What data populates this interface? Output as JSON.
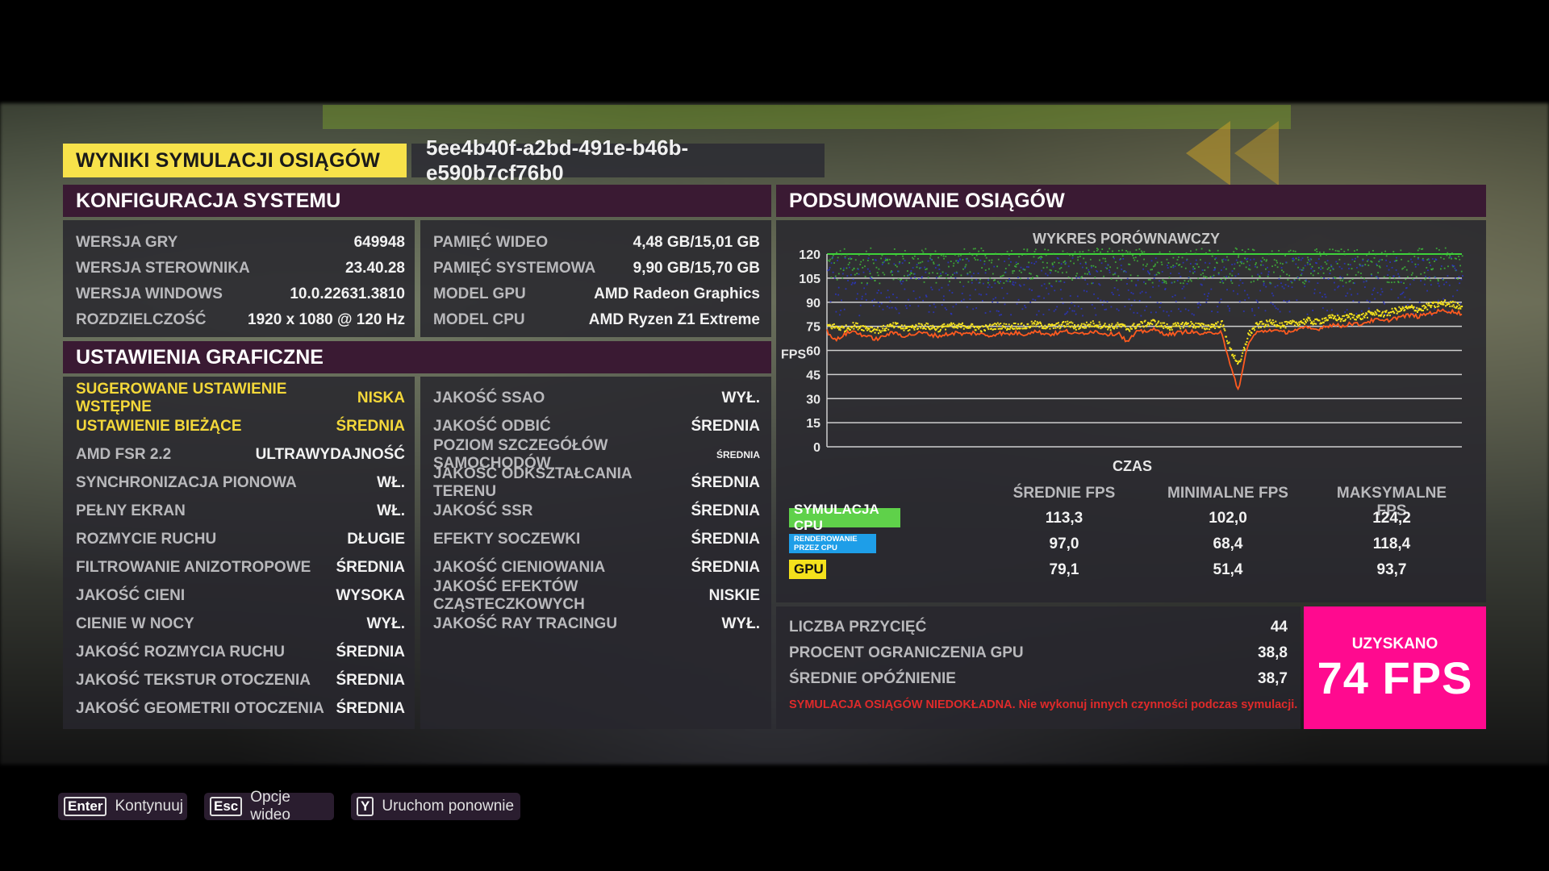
{
  "header": {
    "title": "WYNIKI SYMULACJI OSIĄGÓW",
    "run_id": "5ee4b40f-a2bd-491e-b46b-e590b7cf76b0"
  },
  "system_config": {
    "title": "KONFIGURACJA SYSTEMU",
    "left": [
      {
        "label": "WERSJA GRY",
        "value": "649948"
      },
      {
        "label": "WERSJA STEROWNIKA",
        "value": "23.40.28"
      },
      {
        "label": "WERSJA WINDOWS",
        "value": "10.0.22631.3810"
      },
      {
        "label": "ROZDZIELCZOŚĆ",
        "value": "1920 x 1080 @ 120 Hz"
      }
    ],
    "right": [
      {
        "label": "PAMIĘĆ WIDEO",
        "value": "4,48 GB/15,01 GB"
      },
      {
        "label": "PAMIĘĆ SYSTEMOWA",
        "value": "9,90 GB/15,70 GB"
      },
      {
        "label": "MODEL GPU",
        "value": "AMD Radeon Graphics"
      },
      {
        "label": "MODEL CPU",
        "value": "AMD Ryzen Z1 Extreme"
      }
    ]
  },
  "graphics_settings": {
    "title": "USTAWIENIA GRAFICZNE",
    "highlight_color": "#f4d83a",
    "left": [
      {
        "label": "SUGEROWANE USTAWIENIE WSTĘPNE",
        "value": "NISKA"
      },
      {
        "label": "USTAWIENIE BIEŻĄCE",
        "value": "ŚREDNIA"
      },
      {
        "label": "AMD FSR 2.2",
        "value": "ULTRAWYDAJNOŚĆ"
      },
      {
        "label": "SYNCHRONIZACJA PIONOWA",
        "value": "WŁ."
      },
      {
        "label": "PEŁNY EKRAN",
        "value": "WŁ."
      },
      {
        "label": "ROZMYCIE RUCHU",
        "value": "DŁUGIE"
      },
      {
        "label": "FILTROWANIE ANIZOTROPOWE",
        "value": "ŚREDNIA"
      },
      {
        "label": "JAKOŚĆ CIENI",
        "value": "WYSOKA"
      },
      {
        "label": "CIENIE W NOCY",
        "value": "WYŁ."
      },
      {
        "label": "JAKOŚĆ ROZMYCIA RUCHU",
        "value": "ŚREDNIA"
      },
      {
        "label": "JAKOŚĆ TEKSTUR OTOCZENIA",
        "value": "ŚREDNIA"
      },
      {
        "label": "JAKOŚĆ GEOMETRII OTOCZENIA",
        "value": "ŚREDNIA"
      }
    ],
    "right": [
      {
        "label": "JAKOŚĆ SSAO",
        "value": "WYŁ."
      },
      {
        "label": "JAKOŚĆ ODBIĆ",
        "value": "ŚREDNIA"
      },
      {
        "label": "POZIOM SZCZEGÓŁÓW SAMOCHODÓW",
        "value": "ŚREDNIA"
      },
      {
        "label": "JAKOŚĆ ODKSZTAŁCANIA TERENU",
        "value": "ŚREDNIA"
      },
      {
        "label": "JAKOŚĆ SSR",
        "value": "ŚREDNIA"
      },
      {
        "label": "EFEKTY SOCZEWKI",
        "value": "ŚREDNIA"
      },
      {
        "label": "JAKOŚĆ CIENIOWANIA",
        "value": "ŚREDNIA"
      },
      {
        "label": "JAKOŚĆ EFEKTÓW CZĄSTECZKOWYCH",
        "value": "NISKIE"
      },
      {
        "label": "JAKOŚĆ RAY TRACINGU",
        "value": "WYŁ."
      }
    ]
  },
  "performance_summary": {
    "title": "PODSUMOWANIE OSIĄGÓW",
    "chart_title": "WYKRES PORÓWNAWCZY",
    "stats_headers": [
      "ŚREDNIE FPS",
      "MINIMALNE FPS",
      "MAKSYMALNE FPS"
    ],
    "rows": [
      {
        "label": "SYMULACJA CPU",
        "color": "#5fd14a",
        "avg": "113,3",
        "min": "102,0",
        "max": "124,2"
      },
      {
        "label": "RENDEROWANIE PRZEZ CPU",
        "color": "#1e9ee8",
        "avg": "97,0",
        "min": "68,4",
        "max": "118,4"
      },
      {
        "label": "GPU",
        "color": "#f4e11c",
        "avg": "79,1",
        "min": "51,4",
        "max": "93,7"
      }
    ],
    "extra": [
      {
        "label": "LICZBA PRZYCIĘĆ",
        "value": "44"
      },
      {
        "label": "PROCENT OGRANICZENIA GPU",
        "value": "38,8"
      },
      {
        "label": "ŚREDNIE OPÓŹNIENIE",
        "value": "38,7"
      }
    ],
    "warning": "SYMULACJA OSIĄGÓW NIEDOKŁADNA. Nie wykonuj innych czynności podczas symulacji.",
    "result_label": "UZYSKANO",
    "result_value": "74 FPS",
    "result_color": "#ff0a8f"
  },
  "chart_data": {
    "type": "scatter",
    "title": "WYKRES PORÓWNAWCZY",
    "xlabel": "CZAS",
    "ylabel": "FPS",
    "ylim": [
      0,
      120
    ],
    "yticks": [
      0,
      15,
      30,
      45,
      60,
      75,
      90,
      105,
      120
    ],
    "grid": true,
    "series": [
      {
        "name": "SYMULACJA CPU",
        "color": "#3fb83a",
        "kind": "scatter",
        "range": [
          102.0,
          124.2
        ],
        "mean": 113.3
      },
      {
        "name": "RENDEROWANIE PRZEZ CPU",
        "color": "#2a35c8",
        "kind": "scatter",
        "range": [
          68.4,
          118.4
        ],
        "mean": 97.0
      },
      {
        "name": "GPU",
        "color": "#f4e11c",
        "kind": "scatter",
        "range": [
          51.4,
          93.7
        ],
        "mean": 79.1,
        "profile": [
          76,
          75,
          74,
          76,
          75,
          74,
          73,
          75,
          76,
          74,
          75,
          76,
          75,
          74,
          76,
          75,
          76,
          75,
          74,
          75,
          76,
          75,
          76,
          75,
          77,
          76,
          75,
          76,
          77,
          75,
          76,
          77,
          76,
          75,
          76,
          74,
          76,
          77,
          78,
          76,
          75,
          76,
          77,
          76,
          75,
          76,
          77,
          60,
          51.4,
          70,
          76,
          77,
          78,
          76,
          77,
          78,
          79,
          78,
          80,
          81,
          80,
          82,
          81,
          83,
          84,
          83,
          85,
          86,
          87,
          86,
          88,
          89,
          90,
          89,
          88
        ]
      },
      {
        "name": "",
        "color": "#ff5a1f",
        "kind": "line",
        "note": "unlabeled orange line",
        "profile": [
          72,
          66,
          70,
          72,
          70,
          68,
          67,
          70,
          71,
          69,
          70,
          71,
          70,
          69,
          70,
          71,
          70,
          71,
          70,
          69,
          71,
          70,
          71,
          70,
          72,
          71,
          70,
          71,
          72,
          70,
          71,
          72,
          71,
          70,
          71,
          65,
          71,
          72,
          73,
          71,
          70,
          71,
          72,
          71,
          70,
          71,
          72,
          50,
          35,
          63,
          71,
          72,
          73,
          71,
          72,
          73,
          74,
          73,
          75,
          76,
          75,
          77,
          76,
          78,
          79,
          78,
          80,
          81,
          82,
          81,
          83,
          84,
          85,
          84,
          83
        ]
      }
    ]
  },
  "footer": {
    "buttons": [
      {
        "key": "Enter",
        "label": "Kontynuuj"
      },
      {
        "key": "Esc",
        "label": "Opcje wideo"
      },
      {
        "key": "Y",
        "label": "Uruchom ponownie"
      }
    ]
  }
}
